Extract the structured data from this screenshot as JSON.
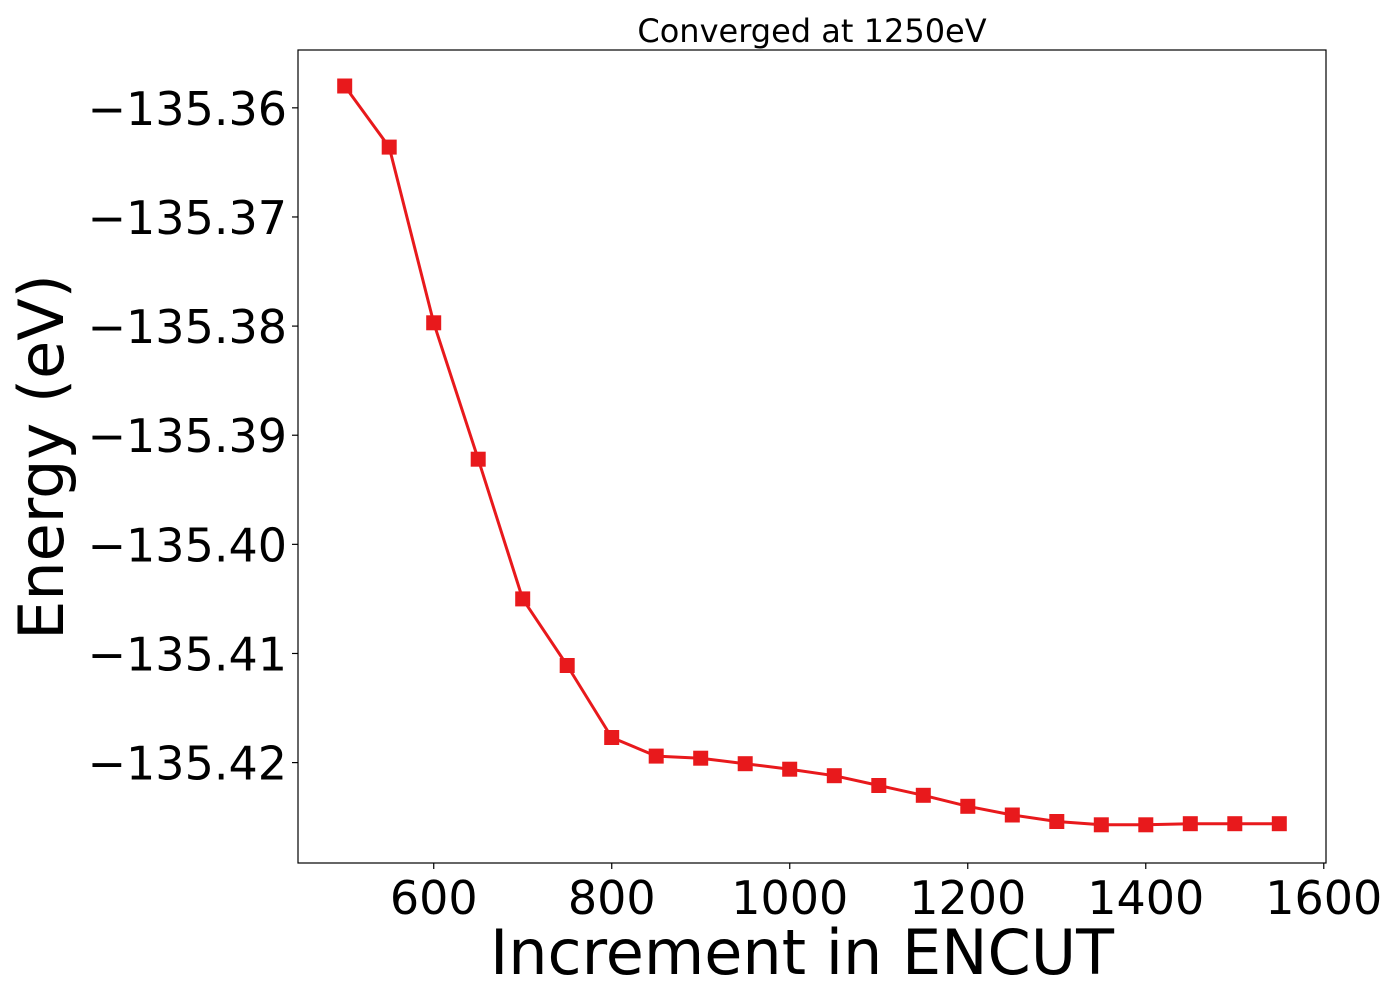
{
  "chart_data": {
    "type": "line",
    "title": "Converged at 1250eV",
    "xlabel": "Increment in ENCUT",
    "ylabel": "Energy (eV)",
    "xlim": [
      447.5,
      1602.5
    ],
    "ylim": [
      -135.4292,
      -135.3547
    ],
    "x_ticks": [
      600,
      800,
      1000,
      1200,
      1400,
      1600
    ],
    "x_tick_labels": [
      "600",
      "800",
      "1000",
      "1200",
      "1400",
      "1600"
    ],
    "y_ticks": [
      -135.36,
      -135.37,
      -135.38,
      -135.39,
      -135.4,
      -135.41,
      -135.42
    ],
    "y_tick_labels": [
      "−135.36",
      "−135.37",
      "−135.38",
      "−135.39",
      "−135.40",
      "−135.41",
      "−135.42"
    ],
    "grid": false,
    "series": [
      {
        "color": "#e8191c",
        "marker": "square",
        "x": [
          500,
          550,
          600,
          650,
          700,
          750,
          800,
          850,
          900,
          950,
          1000,
          1050,
          1100,
          1150,
          1200,
          1250,
          1300,
          1350,
          1400,
          1450,
          1500,
          1550
        ],
        "y": [
          -135.358,
          -135.3636,
          -135.3797,
          -135.3922,
          -135.405,
          -135.4111,
          -135.4177,
          -135.4194,
          -135.4196,
          -135.4201,
          -135.4206,
          -135.4212,
          -135.4221,
          -135.423,
          -135.424,
          -135.4248,
          -135.4254,
          -135.4257,
          -135.4257,
          -135.4256,
          -135.4256,
          -135.4256
        ]
      }
    ]
  }
}
